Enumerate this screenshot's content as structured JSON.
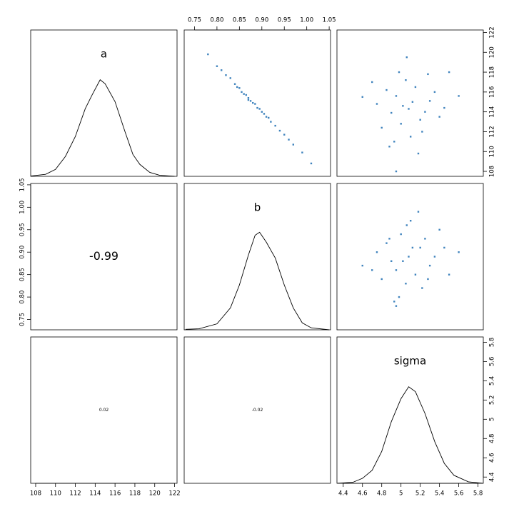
{
  "chart_data": {
    "type": "pairs",
    "variables": [
      {
        "name": "a",
        "lim": [
          107.5,
          122.25
        ],
        "ticks": [
          108,
          110,
          112,
          114,
          116,
          118,
          120,
          122
        ],
        "density": {
          "ylim": [
            0,
            1.47
          ],
          "x": [
            107.5,
            109,
            110,
            111,
            112,
            113,
            113.7,
            114.5,
            115,
            116,
            117,
            117.8,
            118.5,
            119.5,
            120.5,
            122
          ],
          "y": [
            0.003,
            0.02,
            0.07,
            0.2,
            0.4,
            0.68,
            0.82,
            0.97,
            0.93,
            0.75,
            0.45,
            0.22,
            0.12,
            0.04,
            0.01,
            0
          ]
        }
      },
      {
        "name": "b",
        "lim": [
          0.727,
          1.053
        ],
        "ticks": [
          0.75,
          {
            "value": 0.8,
            "label": "0.80"
          },
          0.85,
          {
            "value": 0.9,
            "label": "0.90"
          },
          0.95,
          {
            "value": 1,
            "label": "1.00"
          },
          1.05
        ],
        "density": {
          "ylim": [
            0,
            1.47
          ],
          "x": [
            0.73,
            0.76,
            0.8,
            0.83,
            0.85,
            0.87,
            0.885,
            0.895,
            0.91,
            0.93,
            0.95,
            0.97,
            0.99,
            1.01,
            1.05
          ],
          "y": [
            0.005,
            0.01,
            0.06,
            0.22,
            0.45,
            0.75,
            0.95,
            0.98,
            0.88,
            0.72,
            0.45,
            0.22,
            0.07,
            0.02,
            0
          ]
        }
      },
      {
        "name": "sigma",
        "lim": [
          4.335,
          5.855
        ],
        "ticks": [
          4.4,
          4.6,
          4.8,
          5,
          5.2,
          5.4,
          5.6,
          5.8
        ],
        "density": {
          "ylim": [
            0,
            1.47
          ],
          "x": [
            4.34,
            4.5,
            4.6,
            4.7,
            4.8,
            4.9,
            5,
            5.08,
            5.15,
            5.25,
            5.35,
            5.45,
            5.55,
            5.7,
            5.85
          ],
          "y": [
            0,
            0.01,
            0.05,
            0.13,
            0.32,
            0.62,
            0.85,
            0.97,
            0.92,
            0.7,
            0.42,
            0.2,
            0.08,
            0.015,
            0
          ]
        }
      }
    ],
    "correlations": [
      -0.99,
      0.02,
      -0.02
    ],
    "scatter": [
      {
        "color": "#3f83bd",
        "x": [
          0.8,
          0.81,
          0.82,
          0.83,
          0.84,
          0.845,
          0.85,
          0.855,
          0.86,
          0.865,
          0.87,
          0.875,
          0.88,
          0.885,
          0.89,
          0.895,
          0.9,
          0.905,
          0.91,
          0.915,
          0.92,
          0.93,
          0.94,
          0.95,
          0.96,
          0.97,
          0.99,
          1.01,
          0.78,
          0.87
        ],
        "y": [
          118.6,
          118.2,
          117.7,
          117.4,
          116.8,
          116.5,
          116.4,
          116,
          115.8,
          115.7,
          115.4,
          115.1,
          114.9,
          114.8,
          114.4,
          114.3,
          114,
          113.8,
          113.5,
          113.4,
          113,
          112.6,
          112.1,
          111.7,
          111.2,
          110.7,
          109.9,
          108.8,
          119.8,
          115.2
        ]
      },
      {
        "color": "#3f83bd",
        "x": [
          5.08,
          4.95,
          5.2,
          4.85,
          5.3,
          5,
          5.15,
          4.9,
          5.25,
          5.05,
          4.75,
          5.4,
          5.1,
          4.98,
          5.35,
          4.8,
          5.12,
          5.02,
          5.22,
          4.7,
          5.45,
          5.06,
          4.88,
          5.28,
          4.93,
          5.6,
          4.6,
          5.18,
          5.5,
          4.95
        ],
        "y": [
          114.3,
          115.6,
          113.2,
          116.2,
          115.1,
          112.8,
          116.5,
          113.9,
          114,
          117.2,
          114.8,
          113.5,
          111.5,
          118,
          116,
          112.4,
          115,
          114.6,
          112,
          117,
          114.4,
          119.5,
          110.5,
          117.8,
          111,
          115.6,
          115.5,
          109.8,
          118,
          108
        ]
      },
      {
        "color": "#3f83bd",
        "x": [
          5.08,
          4.95,
          5.2,
          4.85,
          5.3,
          5,
          5.15,
          4.9,
          5.25,
          5.05,
          4.75,
          5.4,
          5.1,
          4.98,
          5.35,
          4.8,
          5.12,
          5.02,
          5.22,
          4.7,
          5.45,
          5.06,
          4.88,
          5.28,
          4.93,
          5.6,
          4.6,
          5.18,
          5.5,
          4.95
        ],
        "y": [
          0.89,
          0.86,
          0.91,
          0.92,
          0.87,
          0.94,
          0.85,
          0.88,
          0.93,
          0.83,
          0.9,
          0.95,
          0.97,
          0.8,
          0.89,
          0.84,
          0.91,
          0.88,
          0.82,
          0.86,
          0.91,
          0.96,
          0.93,
          0.84,
          0.79,
          0.9,
          0.87,
          0.99,
          0.85,
          0.78
        ]
      }
    ]
  }
}
